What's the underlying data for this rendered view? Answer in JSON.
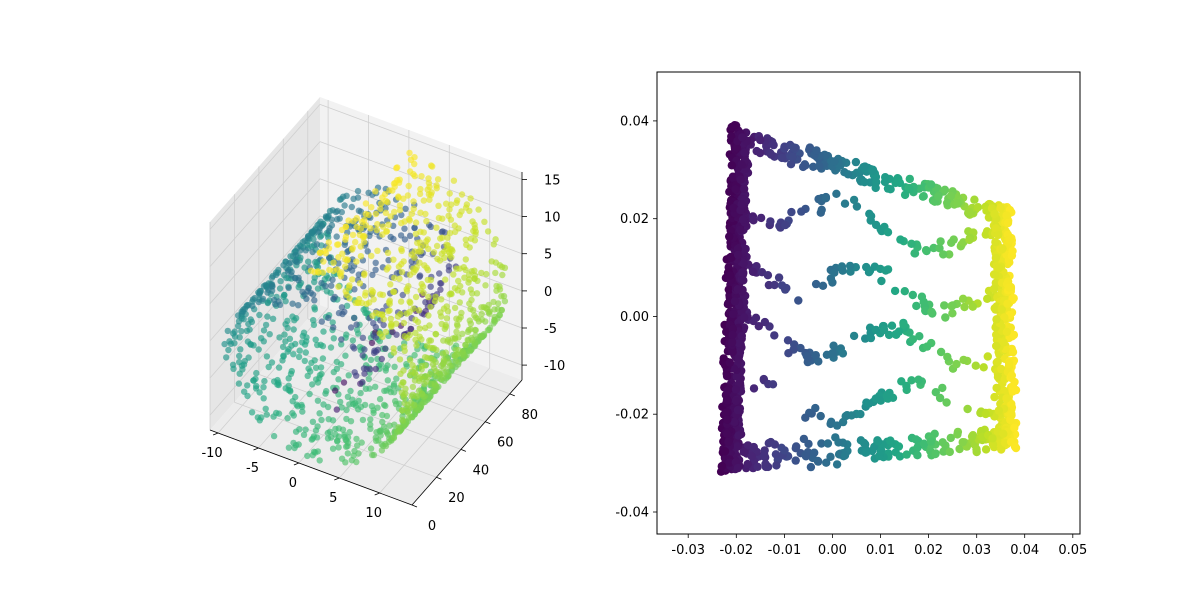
{
  "chart_data": [
    {
      "type": "scatter3d",
      "title": "",
      "xlabel": "",
      "ylabel": "",
      "zlabel": "",
      "xlim": [
        -11,
        14
      ],
      "ylim": [
        0,
        90
      ],
      "zlim": [
        -12,
        16
      ],
      "x_ticks": [
        "-10",
        "-5",
        "0",
        "5",
        "10"
      ],
      "y_ticks": [
        "0",
        "20",
        "40",
        "60",
        "80"
      ],
      "z_ticks": [
        "-10",
        "-5",
        "0",
        "5",
        "10",
        "15"
      ],
      "x_tick_values": [
        -10,
        -5,
        0,
        5,
        10
      ],
      "y_tick_values": [
        0,
        20,
        40,
        60,
        80
      ],
      "z_tick_values": [
        -10,
        -5,
        0,
        5,
        10,
        15
      ],
      "colormap": "viridis",
      "description_points": "swiss roll: x = t cos t, z = t sin t, y uniform in [0, 90], t in [4.7, 14.1], colored by t",
      "t_range": [
        4.7,
        14.1
      ],
      "n_points": 1500
    },
    {
      "type": "scatter",
      "title": "",
      "xlabel": "",
      "ylabel": "",
      "xlim": [
        -0.0365,
        0.0515
      ],
      "ylim": [
        -0.0445,
        0.05
      ],
      "x_ticks": [
        "-0.03",
        "-0.02",
        "-0.01",
        "0.00",
        "0.01",
        "0.02",
        "0.03",
        "0.04",
        "0.05"
      ],
      "y_ticks": [
        "-0.04",
        "-0.02",
        "0.00",
        "0.02",
        "0.04"
      ],
      "x_tick_values": [
        -0.03,
        -0.02,
        -0.01,
        0.0,
        0.01,
        0.02,
        0.03,
        0.04,
        0.05
      ],
      "y_tick_values": [
        -0.04,
        -0.02,
        0.0,
        0.02,
        0.04
      ],
      "colormap": "viridis",
      "description_points": "2D embedding of swiss roll; x from about -0.022 (purple) to 0.038 (yellow), y from about -0.032 to 0.039",
      "corners": {
        "top_left": [
          -0.021,
          0.039
        ],
        "top_right": [
          0.037,
          0.022
        ],
        "bottom_right": [
          0.038,
          -0.027
        ],
        "bottom_left": [
          -0.023,
          -0.032
        ]
      },
      "n_points": 1500
    }
  ]
}
